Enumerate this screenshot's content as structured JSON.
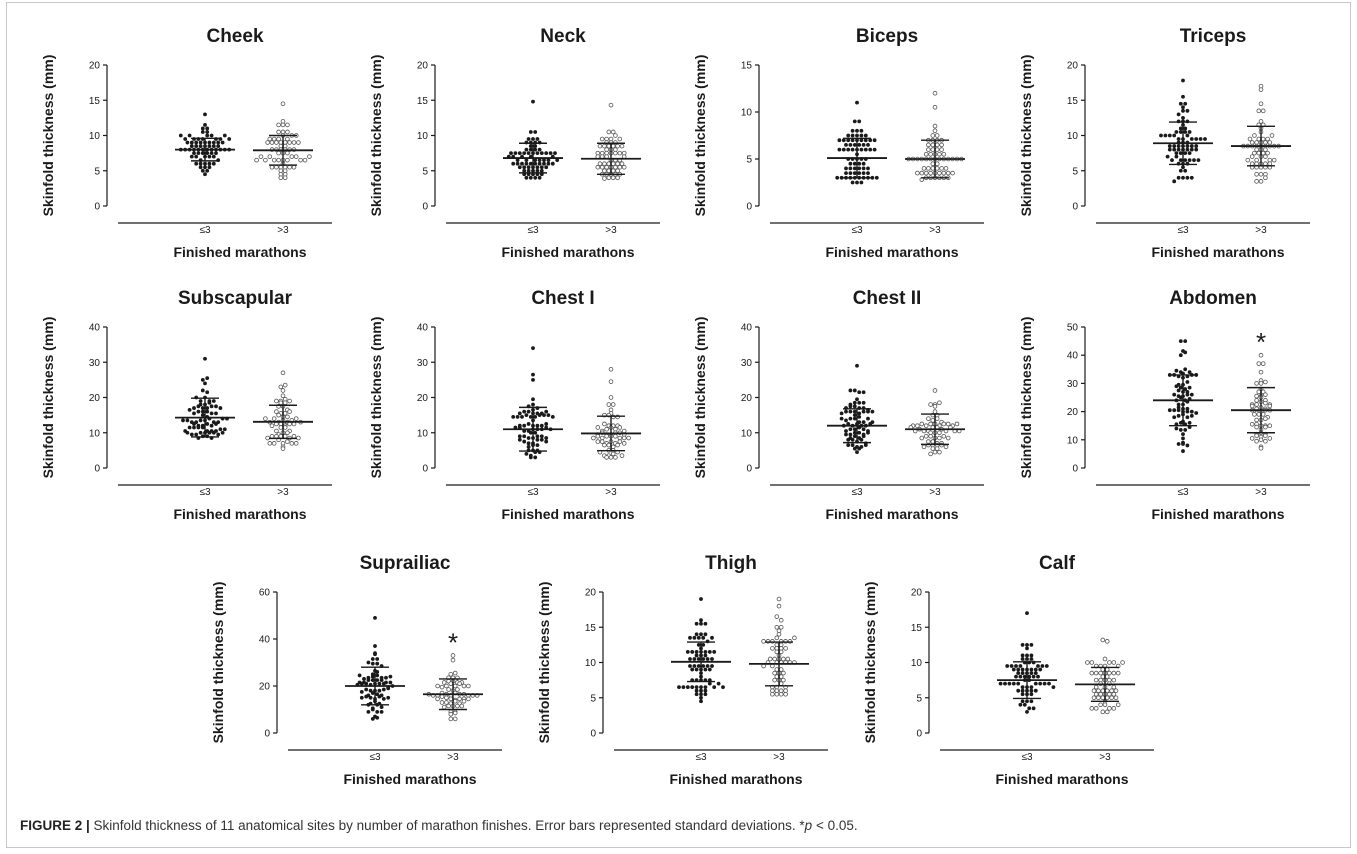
{
  "caption": {
    "label": "FIGURE 2 |",
    "text": " Skinfold thickness of 11 anatomical sites by number of marathon finishes. Error bars represented standard deviations. *",
    "p_symbol": "p",
    "tail": " < 0.05."
  },
  "chart_data": [
    {
      "type": "scatter",
      "title": "Cheek",
      "ylabel": "Skinfold thickness (mm)",
      "xlabel": "Finished marathons",
      "categories": [
        "≤3",
        ">3"
      ],
      "yticks": [
        0,
        5,
        10,
        15,
        20
      ],
      "ylim": [
        0,
        20
      ],
      "significance": [
        "",
        ""
      ],
      "series": [
        {
          "category": "≤3",
          "marker": "filled",
          "mean": 8.0,
          "sd": 1.6,
          "max": 13.0,
          "min": 4.5,
          "n": 70
        },
        {
          "category": ">3",
          "marker": "open",
          "mean": 7.9,
          "sd": 2.1,
          "max": 14.5,
          "min": 4.0,
          "n": 60
        }
      ]
    },
    {
      "type": "scatter",
      "title": "Neck",
      "ylabel": "Skinfold thickness (mm)",
      "xlabel": "Finished marathons",
      "categories": [
        "≤3",
        ">3"
      ],
      "yticks": [
        0,
        5,
        10,
        15,
        20
      ],
      "ylim": [
        0,
        20
      ],
      "significance": [
        "",
        ""
      ],
      "series": [
        {
          "category": "≤3",
          "marker": "filled",
          "mean": 6.8,
          "sd": 2.1,
          "max": 14.8,
          "min": 4.0,
          "n": 70
        },
        {
          "category": ">3",
          "marker": "open",
          "mean": 6.7,
          "sd": 2.2,
          "max": 14.3,
          "min": 3.9,
          "n": 60
        }
      ]
    },
    {
      "type": "scatter",
      "title": "Biceps",
      "ylabel": "Skinfold thickness (mm)",
      "xlabel": "Finished marathons",
      "categories": [
        "≤3",
        ">3"
      ],
      "yticks": [
        0,
        5,
        10,
        15
      ],
      "ylim": [
        0,
        15
      ],
      "significance": [
        "",
        ""
      ],
      "series": [
        {
          "category": "≤3",
          "marker": "filled",
          "mean": 5.1,
          "sd": 2.1,
          "max": 11.0,
          "min": 2.5,
          "n": 70
        },
        {
          "category": ">3",
          "marker": "open",
          "mean": 5.0,
          "sd": 2.0,
          "max": 12.0,
          "min": 2.8,
          "n": 60
        }
      ]
    },
    {
      "type": "scatter",
      "title": "Triceps",
      "ylabel": "Skinfold thickness (mm)",
      "xlabel": "Finished marathons",
      "categories": [
        "≤3",
        ">3"
      ],
      "yticks": [
        0,
        5,
        10,
        15,
        20
      ],
      "ylim": [
        0,
        20
      ],
      "significance": [
        "",
        ""
      ],
      "series": [
        {
          "category": "≤3",
          "marker": "filled",
          "mean": 8.9,
          "sd": 3.0,
          "max": 17.8,
          "min": 3.5,
          "n": 70
        },
        {
          "category": ">3",
          "marker": "open",
          "mean": 8.5,
          "sd": 2.8,
          "max": 17.0,
          "min": 3.5,
          "n": 60
        }
      ]
    },
    {
      "type": "scatter",
      "title": "Subscapular",
      "ylabel": "Skinfold thickness (mm)",
      "xlabel": "Finished marathons",
      "categories": [
        "≤3",
        ">3"
      ],
      "yticks": [
        0,
        10,
        20,
        30,
        40
      ],
      "ylim": [
        0,
        40
      ],
      "significance": [
        "",
        ""
      ],
      "series": [
        {
          "category": "≤3",
          "marker": "filled",
          "mean": 14.3,
          "sd": 5.5,
          "max": 31.0,
          "min": 8.5,
          "n": 70
        },
        {
          "category": ">3",
          "marker": "open",
          "mean": 13.1,
          "sd": 4.7,
          "max": 27.0,
          "min": 5.5,
          "n": 60
        }
      ]
    },
    {
      "type": "scatter",
      "title": "Chest I",
      "ylabel": "Skinfold thickness (mm)",
      "xlabel": "Finished marathons",
      "categories": [
        "≤3",
        ">3"
      ],
      "yticks": [
        0,
        10,
        20,
        30,
        40
      ],
      "ylim": [
        0,
        40
      ],
      "significance": [
        "",
        ""
      ],
      "series": [
        {
          "category": "≤3",
          "marker": "filled",
          "mean": 11.0,
          "sd": 6.2,
          "max": 34.0,
          "min": 3.0,
          "n": 70
        },
        {
          "category": ">3",
          "marker": "open",
          "mean": 9.8,
          "sd": 4.9,
          "max": 28.0,
          "min": 3.0,
          "n": 60
        }
      ]
    },
    {
      "type": "scatter",
      "title": "Chest II",
      "ylabel": "Skinfold thickness (mm)",
      "xlabel": "Finished marathons",
      "categories": [
        "≤3",
        ">3"
      ],
      "yticks": [
        0,
        10,
        20,
        30,
        40
      ],
      "ylim": [
        0,
        40
      ],
      "significance": [
        "",
        ""
      ],
      "series": [
        {
          "category": "≤3",
          "marker": "filled",
          "mean": 12.0,
          "sd": 4.8,
          "max": 29.0,
          "min": 4.5,
          "n": 70
        },
        {
          "category": ">3",
          "marker": "open",
          "mean": 11.0,
          "sd": 4.3,
          "max": 22.0,
          "min": 4.0,
          "n": 60
        }
      ]
    },
    {
      "type": "scatter",
      "title": "Abdomen",
      "ylabel": "Skinfold thickness (mm)",
      "xlabel": "Finished marathons",
      "categories": [
        "≤3",
        ">3"
      ],
      "yticks": [
        0,
        10,
        20,
        30,
        40,
        50
      ],
      "ylim": [
        0,
        50
      ],
      "significance": [
        "",
        "*"
      ],
      "series": [
        {
          "category": "≤3",
          "marker": "filled",
          "mean": 24.0,
          "sd": 9.0,
          "max": 45.0,
          "min": 6.0,
          "n": 70
        },
        {
          "category": ">3",
          "marker": "open",
          "mean": 20.5,
          "sd": 8.0,
          "max": 40.0,
          "min": 7.0,
          "n": 60
        }
      ]
    },
    {
      "type": "scatter",
      "title": "Suprailiac",
      "ylabel": "Skinfold thickness (mm)",
      "xlabel": "Finished marathons",
      "categories": [
        "≤3",
        ">3"
      ],
      "yticks": [
        0,
        20,
        40,
        60
      ],
      "ylim": [
        0,
        60
      ],
      "significance": [
        "",
        "*"
      ],
      "series": [
        {
          "category": "≤3",
          "marker": "filled",
          "mean": 20.0,
          "sd": 8.0,
          "max": 49.0,
          "min": 6.0,
          "n": 70
        },
        {
          "category": ">3",
          "marker": "open",
          "mean": 16.5,
          "sd": 6.5,
          "max": 33.0,
          "min": 6.0,
          "n": 60
        }
      ]
    },
    {
      "type": "scatter",
      "title": "Thigh",
      "ylabel": "Skinfold thickness (mm)",
      "xlabel": "Finished marathons",
      "categories": [
        "≤3",
        ">3"
      ],
      "yticks": [
        0,
        5,
        10,
        15,
        20
      ],
      "ylim": [
        0,
        20
      ],
      "significance": [
        "",
        ""
      ],
      "series": [
        {
          "category": "≤3",
          "marker": "filled",
          "mean": 10.1,
          "sd": 2.8,
          "max": 19.0,
          "min": 4.5,
          "n": 70
        },
        {
          "category": ">3",
          "marker": "open",
          "mean": 9.8,
          "sd": 3.1,
          "max": 19.0,
          "min": 5.5,
          "n": 60
        }
      ]
    },
    {
      "type": "scatter",
      "title": "Calf",
      "ylabel": "Skinfold thickness (mm)",
      "xlabel": "Finished marathons",
      "categories": [
        "≤3",
        ">3"
      ],
      "yticks": [
        0,
        5,
        10,
        15,
        20
      ],
      "ylim": [
        0,
        20
      ],
      "significance": [
        "",
        ""
      ],
      "series": [
        {
          "category": "≤3",
          "marker": "filled",
          "mean": 7.5,
          "sd": 2.6,
          "max": 17.0,
          "min": 3.0,
          "n": 70
        },
        {
          "category": ">3",
          "marker": "open",
          "mean": 6.9,
          "sd": 2.4,
          "max": 13.2,
          "min": 3.0,
          "n": 60
        }
      ]
    }
  ]
}
